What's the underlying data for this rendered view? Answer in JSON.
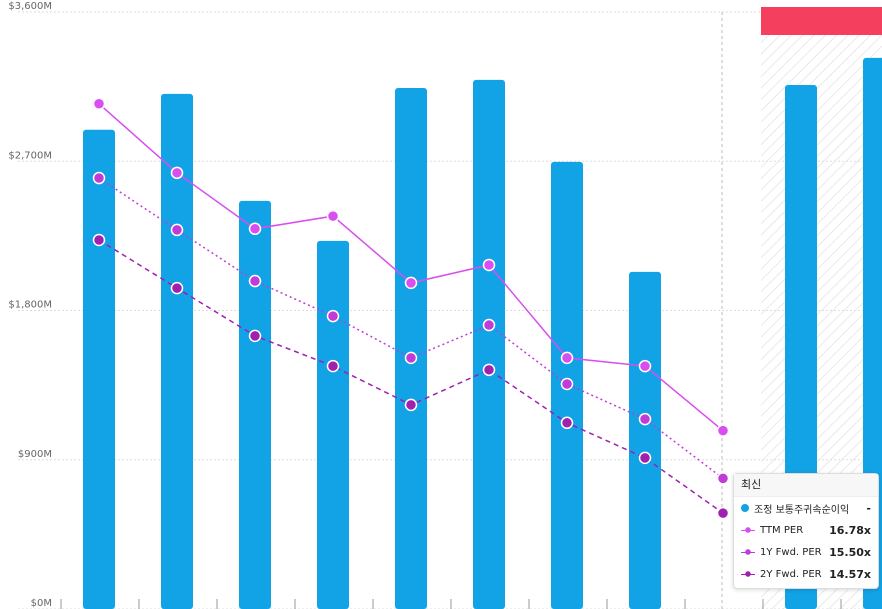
{
  "chart_data": {
    "type": "bar-line",
    "categories": [
      null,
      null,
      null,
      null,
      null,
      null,
      null,
      null,
      null,
      null,
      null
    ],
    "ylim": [
      0,
      3600
    ],
    "yticks": [
      {
        "value": 0,
        "label": "$0M"
      },
      {
        "value": 900,
        "label": "$900M"
      },
      {
        "value": 1800,
        "label": "$1,800M"
      },
      {
        "value": 2700,
        "label": "$2,700M"
      },
      {
        "value": 3600,
        "label": "$3,600M"
      }
    ],
    "y2lim": [
      12,
      28
    ],
    "grid": true,
    "series": [
      {
        "name": "조정 보통주귀속순이익",
        "type": "bar",
        "color": "#12a3e6",
        "values": [
          2890,
          3106,
          2461,
          2220,
          3142,
          3191,
          2696,
          2033,
          null,
          3160,
          3323
        ]
      },
      {
        "name": "TTM PER",
        "type": "line",
        "axis": "y2",
        "color": "#d84ef0",
        "dash": "none",
        "values": [
          25.54,
          23.69,
          22.19,
          22.53,
          20.74,
          21.22,
          18.73,
          18.51,
          16.78,
          null,
          null
        ]
      },
      {
        "name": "1Y Fwd. PER",
        "type": "line",
        "axis": "y2",
        "color": "#c13bd9",
        "dash": "2 3",
        "values": [
          23.55,
          22.16,
          20.79,
          19.85,
          18.73,
          19.61,
          18.03,
          17.09,
          15.5,
          null,
          null
        ]
      },
      {
        "name": "2Y Fwd. PER",
        "type": "line",
        "axis": "y2",
        "color": "#a020b0",
        "dash": "5 4",
        "values": [
          21.89,
          20.6,
          19.32,
          18.51,
          17.47,
          18.41,
          16.99,
          16.05,
          14.57,
          null,
          null
        ]
      }
    ],
    "tooltip": {
      "title": "최신",
      "value_labels": [
        "-",
        "16.78x",
        "15.50x",
        "14.57x"
      ]
    }
  }
}
